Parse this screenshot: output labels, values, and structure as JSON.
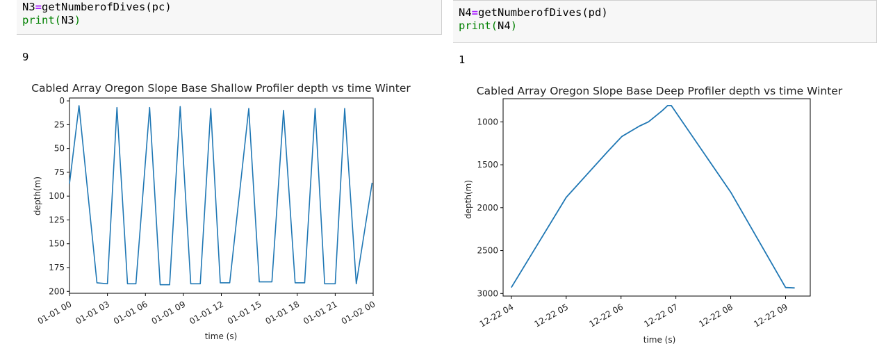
{
  "cells": [
    {
      "code": [
        {
          "lhs": "N3",
          "op": "=",
          "rhs": "getNumberofDives(pc)"
        },
        {
          "fn": "print",
          "arg": "N3"
        }
      ],
      "output": "9"
    },
    {
      "code": [
        {
          "lhs": "N4",
          "op": "=",
          "rhs": "getNumberofDives(pd)"
        },
        {
          "fn": "print",
          "arg": "N4"
        }
      ],
      "output": "1"
    }
  ],
  "chart_data": [
    {
      "type": "line",
      "title": "Cabled Array Oregon Slope Base Shallow Profiler depth vs time Winter",
      "xlabel": "time (s)",
      "ylabel": "depth(m)",
      "y_inverted": true,
      "ylim": [
        202,
        -3
      ],
      "xlim": [
        "01-01 00:00",
        "01-02 00:00"
      ],
      "x_ticks": [
        "01-01 00",
        "01-01 03",
        "01-01 06",
        "01-01 09",
        "01-01 12",
        "01-01 15",
        "01-01 18",
        "01-01 21",
        "01-02 00"
      ],
      "y_ticks": [
        0,
        25,
        50,
        75,
        100,
        125,
        150,
        175,
        200
      ],
      "grid": false,
      "color": "#1f77b4",
      "series": [
        {
          "x": [
            "01-01 00:00",
            "01-01 00:45",
            "01-01 02:10",
            "01-01 03:00",
            "01-01 03:45",
            "01-01 04:35",
            "01-01 05:15",
            "01-01 06:20",
            "01-01 07:10",
            "01-01 07:55",
            "01-01 08:45",
            "01-01 09:35",
            "01-01 10:20",
            "01-01 11:10",
            "01-01 11:55",
            "01-01 12:40",
            "01-01 14:10",
            "01-01 15:00",
            "01-01 16:00",
            "01-01 16:55",
            "01-01 17:50",
            "01-01 18:35",
            "01-01 19:25",
            "01-01 20:10",
            "01-01 21:00",
            "01-01 21:45",
            "01-01 22:40",
            "01-01 23:55"
          ],
          "y": [
            87,
            5,
            191,
            192,
            7,
            192,
            192,
            7,
            193,
            193,
            6,
            192,
            192,
            8,
            191,
            191,
            8,
            190,
            190,
            10,
            191,
            191,
            8,
            192,
            192,
            8,
            192,
            86
          ]
        }
      ]
    },
    {
      "type": "line",
      "title": "Cabled Array Oregon Slope Base Deep Profiler depth vs time Winter",
      "xlabel": "time (s)",
      "ylabel": "depth(m)",
      "y_inverted": true,
      "ylim": [
        3030,
        730
      ],
      "xlim": [
        "12-22 03:51",
        "12-22 09:27"
      ],
      "x_ticks": [
        "12-22 04",
        "12-22 05",
        "12-22 06",
        "12-22 07",
        "12-22 08",
        "12-22 09"
      ],
      "y_ticks": [
        1000,
        1500,
        2000,
        2500,
        3000
      ],
      "grid": false,
      "color": "#1f77b4",
      "series": [
        {
          "x": [
            "12-22 04:00",
            "12-22 05:00",
            "12-22 05:45",
            "12-22 06:01",
            "12-22 06:20",
            "12-22 06:30",
            "12-22 06:45",
            "12-22 06:51",
            "12-22 06:55",
            "12-22 08:00",
            "12-22 09:00",
            "12-22 09:10"
          ],
          "y": [
            2930,
            1880,
            1350,
            1170,
            1050,
            1000,
            870,
            810,
            810,
            1820,
            2930,
            2935
          ]
        }
      ]
    }
  ]
}
